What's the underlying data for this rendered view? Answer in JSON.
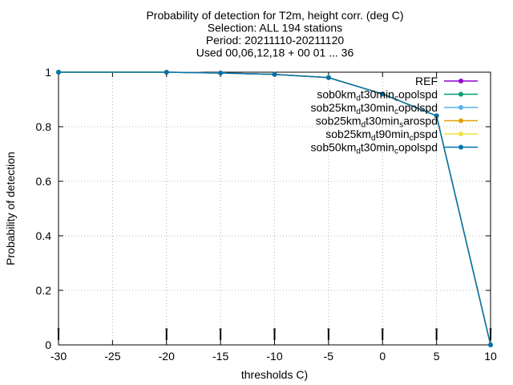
{
  "chart_data": {
    "type": "line",
    "title_lines": [
      "Probability of detection  for T2m, height corr. (deg C)",
      "Selection: ALL    194 stations",
      "Period: 20211110-20211120",
      "Used 00,06,12,18 + 00 01 ... 36"
    ],
    "xlabel": "thresholds C)",
    "ylabel": "Probability of detection",
    "xlim": [
      -30,
      10
    ],
    "ylim": [
      0,
      1
    ],
    "x_ticks": [
      -30,
      -25,
      -20,
      -15,
      -10,
      -5,
      0,
      5,
      10
    ],
    "y_ticks": [
      0,
      0.2,
      0.4,
      0.6,
      0.8,
      1
    ],
    "y_tick_labels": [
      "0",
      "0.2",
      "0.4",
      "0.6",
      "0.8",
      "1"
    ],
    "grid": true,
    "legend_position": "top-right",
    "x": [
      -30,
      -20,
      -15,
      -10,
      -5,
      0,
      5,
      10
    ],
    "series": [
      {
        "name": "REF",
        "label_parts": [
          [
            "REF",
            ""
          ]
        ],
        "color": "#9400d3",
        "values": [
          1.0,
          1.0,
          0.997,
          0.992,
          0.98,
          0.92,
          0.84,
          0.0
        ]
      },
      {
        "name": "sob0km_d t30min_c opolspd",
        "label_parts": [
          [
            "sob0km",
            ""
          ],
          [
            "d",
            "sub"
          ],
          [
            "t30min",
            ""
          ],
          [
            "c",
            "sub"
          ],
          [
            "opolspd",
            ""
          ]
        ],
        "color": "#009e73",
        "values": [
          1.0,
          1.0,
          0.997,
          0.992,
          0.98,
          0.92,
          0.84,
          0.0
        ]
      },
      {
        "name": "sob25km_d t30min_c opolspd",
        "label_parts": [
          [
            "sob25km",
            ""
          ],
          [
            "d",
            "sub"
          ],
          [
            "t30min",
            ""
          ],
          [
            "c",
            "sub"
          ],
          [
            "opolspd",
            ""
          ]
        ],
        "color": "#56b4e9",
        "values": [
          1.0,
          1.0,
          0.997,
          0.992,
          0.98,
          0.92,
          0.84,
          0.0
        ]
      },
      {
        "name": "sob25km_d t30min_s arospd",
        "label_parts": [
          [
            "sob25km",
            ""
          ],
          [
            "d",
            "sub"
          ],
          [
            "t30min",
            ""
          ],
          [
            "s",
            "sub"
          ],
          [
            "arospd",
            ""
          ]
        ],
        "color": "#e69f00",
        "values": [
          1.0,
          1.0,
          0.997,
          0.992,
          0.98,
          0.92,
          0.84,
          0.0
        ]
      },
      {
        "name": "sob25km_d t90min_c pspd",
        "label_parts": [
          [
            "sob25km",
            ""
          ],
          [
            "d",
            "sub"
          ],
          [
            "t90min",
            ""
          ],
          [
            "c",
            "sub"
          ],
          [
            "pspd",
            ""
          ]
        ],
        "color": "#f0e442",
        "values": [
          1.0,
          1.0,
          0.997,
          0.992,
          0.98,
          0.92,
          0.84,
          0.0
        ]
      },
      {
        "name": "sob50km_d t30min_c opolspd",
        "label_parts": [
          [
            "sob50km",
            ""
          ],
          [
            "d",
            "sub"
          ],
          [
            "t30min",
            ""
          ],
          [
            "c",
            "sub"
          ],
          [
            "opolspd",
            ""
          ]
        ],
        "color": "#0072b2",
        "values": [
          1.0,
          1.0,
          0.997,
          0.992,
          0.98,
          0.92,
          0.84,
          0.0
        ]
      }
    ]
  }
}
